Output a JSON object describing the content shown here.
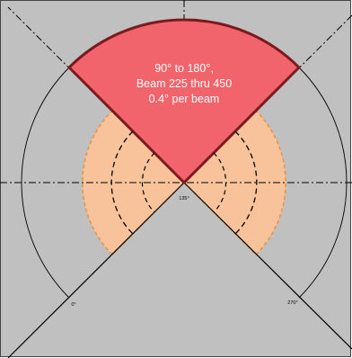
{
  "colors": {
    "background": "#c0c0c0",
    "sector_fill": "#f2646b",
    "sector_border": "#7a1a1f",
    "side_fill": "#f8c39b",
    "side_border": "#e8913a",
    "line": "#000000",
    "text": "#ffffff"
  },
  "sector_label": {
    "line1": "90° to 180°,",
    "line2": "Beam 225 thru 450",
    "line3": "0.4° per beam"
  },
  "angle_labels": {
    "left": "0°",
    "center": "135°",
    "right": "270°"
  }
}
